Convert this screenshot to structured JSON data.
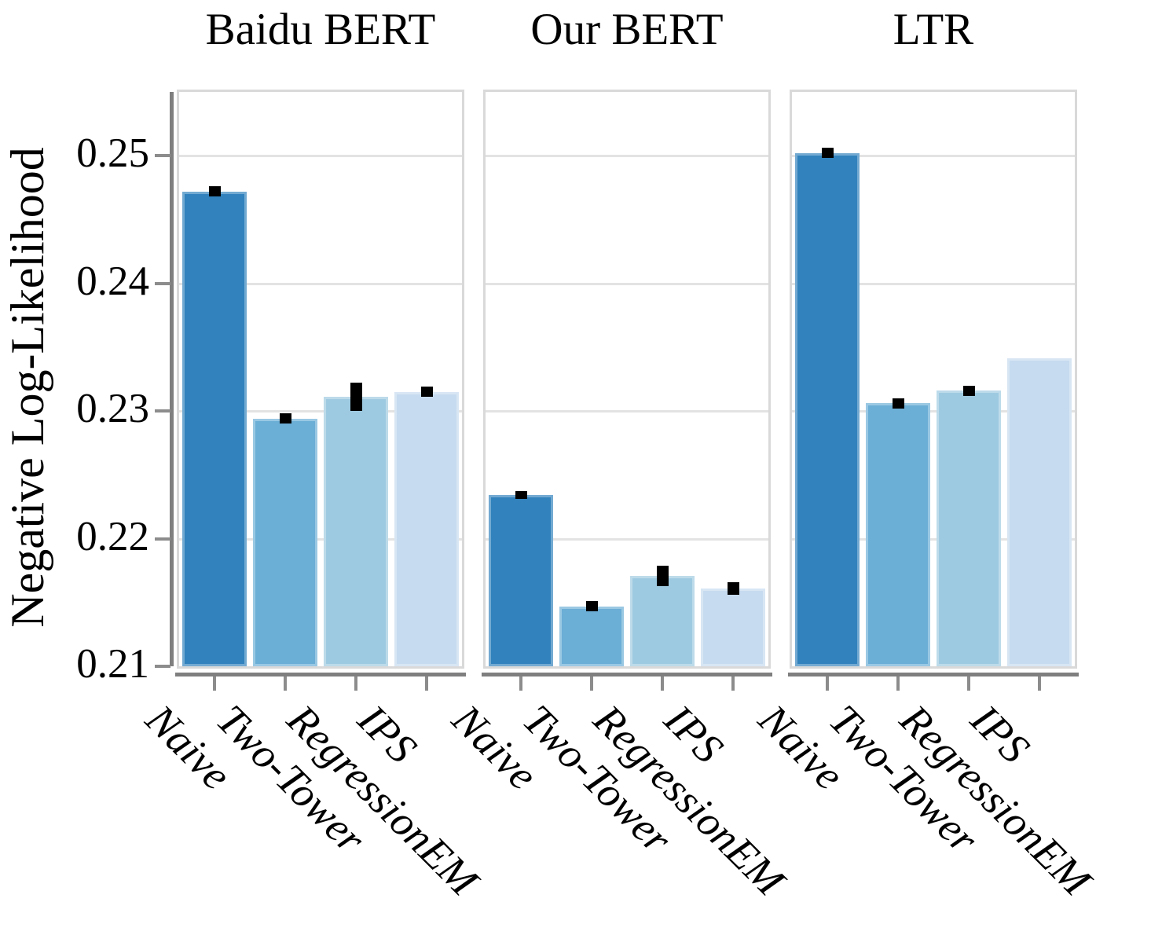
{
  "chart_data": {
    "type": "bar",
    "layout": "three-panel small-multiples, shared y-axis",
    "panel_titles": [
      "Baidu BERT",
      "Our BERT",
      "LTR"
    ],
    "categories": [
      "Naive",
      "Two-Tower",
      "RegressionEM",
      "IPS"
    ],
    "series": [
      {
        "name": "Baidu BERT",
        "values": [
          0.2472,
          0.2294,
          0.2311,
          0.2315
        ],
        "errors": [
          0.0004,
          0.0004,
          0.0011,
          0.0004
        ]
      },
      {
        "name": "Our BERT",
        "values": [
          0.2234,
          0.2147,
          0.2171,
          0.2161
        ],
        "errors": [
          0.0003,
          0.0004,
          0.0008,
          0.0005
        ]
      },
      {
        "name": "LTR",
        "values": [
          0.2502,
          0.2306,
          0.2316,
          0.2341
        ],
        "errors": [
          0.0004,
          0.0004,
          0.0004,
          null
        ]
      }
    ],
    "xlabel": "",
    "ylabel": "Negative Log-Likelihood",
    "ylim": [
      0.21,
      0.255
    ],
    "yticks": [
      0.25,
      0.24,
      0.23,
      0.22,
      0.21
    ],
    "ytick_labels": [
      "0.25",
      "0.24",
      "0.23",
      "0.22",
      "0.21"
    ],
    "grid": true,
    "legend": null,
    "bar_colors": [
      "#3182bd",
      "#6baed6",
      "#9ecae1",
      "#c6dbef"
    ],
    "error_bar_color": "#000000",
    "gridline_color": "#e3e3e3",
    "panel_border_color": "#d9d9d9",
    "spine_color": "#7f7f7f",
    "tick_color": "#8c8c8c"
  }
}
